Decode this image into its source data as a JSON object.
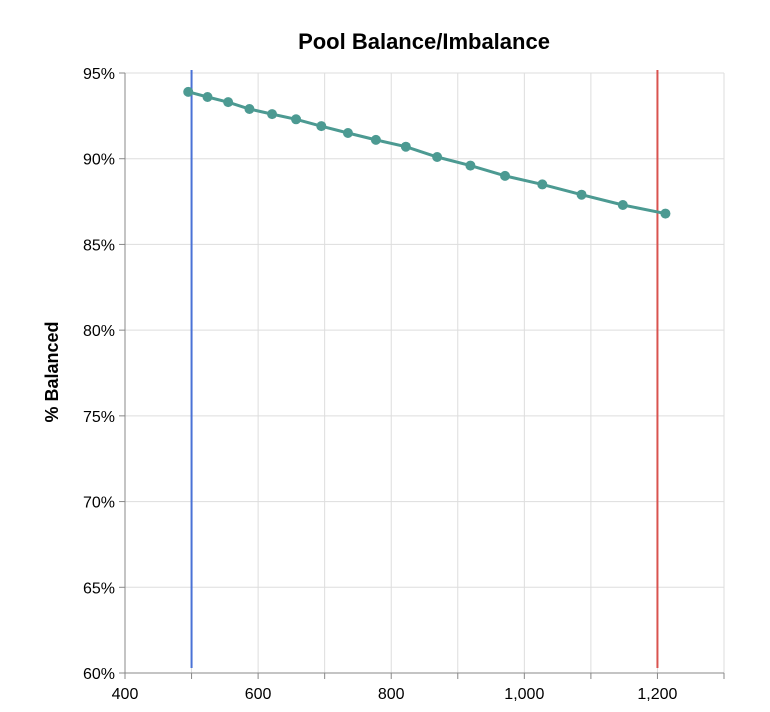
{
  "chart_data": {
    "type": "line",
    "title": "Pool Balance/Imbalance",
    "xlabel": "",
    "ylabel": "% Balanced",
    "xlim": [
      400,
      1300
    ],
    "ylim": [
      0.6,
      0.95
    ],
    "x_ticks": [
      400,
      600,
      800,
      1000,
      1200
    ],
    "x_tick_labels": [
      "400",
      "600",
      "800",
      "1,000",
      "1,200"
    ],
    "y_ticks": [
      0.6,
      0.65,
      0.7,
      0.75,
      0.8,
      0.85,
      0.9,
      0.95
    ],
    "y_tick_labels": [
      "60%",
      "65%",
      "70%",
      "75%",
      "80%",
      "85%",
      "90%",
      "95%"
    ],
    "grid": true,
    "series": [
      {
        "color": "#4c9a92",
        "points": [
          {
            "x": 495,
            "y": 0.939
          },
          {
            "x": 524,
            "y": 0.936
          },
          {
            "x": 555,
            "y": 0.933
          },
          {
            "x": 587,
            "y": 0.929
          },
          {
            "x": 621,
            "y": 0.926
          },
          {
            "x": 657,
            "y": 0.923
          },
          {
            "x": 695,
            "y": 0.919
          },
          {
            "x": 735,
            "y": 0.915
          },
          {
            "x": 777,
            "y": 0.911
          },
          {
            "x": 822,
            "y": 0.907
          },
          {
            "x": 869,
            "y": 0.901
          },
          {
            "x": 919,
            "y": 0.896
          },
          {
            "x": 971,
            "y": 0.89
          },
          {
            "x": 1027,
            "y": 0.885
          },
          {
            "x": 1086,
            "y": 0.879
          },
          {
            "x": 1148,
            "y": 0.873
          },
          {
            "x": 1212,
            "y": 0.868
          }
        ]
      }
    ],
    "reference_lines": [
      {
        "x": 500,
        "color": "#4a72d6"
      },
      {
        "x": 1200,
        "color": "#d9534f"
      }
    ]
  }
}
